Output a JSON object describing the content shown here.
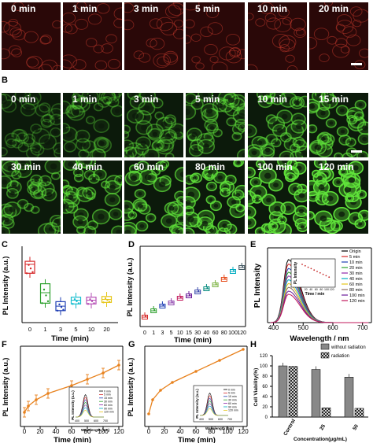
{
  "panels": {
    "A": "A",
    "B": "B",
    "C": "C",
    "D": "D",
    "E": "E",
    "F": "F",
    "G": "G",
    "H": "H"
  },
  "rowA": [
    "0 min",
    "1 min",
    "3 min",
    "5 min",
    "10 min",
    "20 min"
  ],
  "rowB1": [
    "0 min",
    "1 min",
    "3 min",
    "5 min",
    "10 min",
    "15 min"
  ],
  "rowB2": [
    "30 min",
    "40 min",
    "60 min",
    "80 min",
    "100 min",
    "120 min"
  ],
  "colors": {
    "red_cells": "#c0392b",
    "green_cells": "#5fe23a",
    "orange": "#e8821e"
  },
  "chart_data": [
    {
      "id": "C",
      "type": "box",
      "ylabel": "PL Intensity (a.u.)",
      "xlabel": "Time (min)",
      "categories": [
        "0",
        "1",
        "3",
        "5",
        "10",
        "20"
      ],
      "colors": [
        "#d62728",
        "#2ca02c",
        "#1f3fb4",
        "#17becf",
        "#b64fb6",
        "#e6c619"
      ],
      "medians": [
        0.78,
        0.4,
        0.22,
        0.3,
        0.3,
        0.31
      ],
      "q1": [
        0.66,
        0.26,
        0.16,
        0.25,
        0.25,
        0.27
      ],
      "q3": [
        0.82,
        0.52,
        0.28,
        0.34,
        0.34,
        0.35
      ]
    },
    {
      "id": "D",
      "type": "box",
      "ylabel": "PL Intensity (a.u.)",
      "xlabel": "Time (min)",
      "categories": [
        "0",
        "1",
        "3",
        "5",
        "10",
        "15",
        "30",
        "40",
        "60",
        "80",
        "100",
        "120"
      ],
      "medians": [
        0.12,
        0.2,
        0.26,
        0.3,
        0.36,
        0.39,
        0.44,
        0.48,
        0.53,
        0.6,
        0.7,
        0.75
      ]
    },
    {
      "id": "E",
      "type": "line",
      "ylabel": "PL Intensity",
      "xlabel": "Wavelength / nm",
      "x_ticks": [
        "400",
        "500",
        "600",
        "700"
      ],
      "legend": [
        "Origin",
        "5 min",
        "10 min",
        "20 min",
        "30 min",
        "40 min",
        "60 min",
        "80 min",
        "100 min",
        "120 min"
      ],
      "peak_heights": [
        1.0,
        0.93,
        0.86,
        0.8,
        0.74,
        0.68,
        0.62,
        0.56,
        0.5,
        0.45
      ],
      "inset": {
        "ylabel": "PL Intensity",
        "xlabel": "Time / min",
        "x_ticks": [
          "0",
          "20",
          "40",
          "60",
          "80",
          "100",
          "120"
        ]
      }
    },
    {
      "id": "F",
      "type": "line",
      "ylabel": "PL Intensity (a.u.)",
      "xlabel": "Time (min)",
      "x_ticks": [
        "0",
        "20",
        "40",
        "60",
        "80",
        "100",
        "120"
      ],
      "x": [
        0,
        5,
        15,
        30,
        60,
        80,
        100,
        120
      ],
      "y": [
        0.18,
        0.26,
        0.34,
        0.42,
        0.52,
        0.6,
        0.68,
        0.78
      ],
      "inset": {
        "ylabel": "PL Intensity (a.u.)",
        "xlabel": "Wavelength (nm)",
        "x_ticks": [
          "400",
          "500",
          "600",
          "700"
        ],
        "legend": [
          "0 min",
          "5 min",
          "15 min",
          "30 min",
          "60 min",
          "90 min",
          "120 min"
        ]
      }
    },
    {
      "id": "G",
      "type": "line",
      "ylabel": "PL Intensity (a.u.)",
      "xlabel": "Time (min)",
      "x_ticks": [
        "0",
        "20",
        "40",
        "60",
        "80",
        "100",
        "120"
      ],
      "x": [
        0,
        5,
        15,
        30,
        60,
        90,
        120
      ],
      "y": [
        0.16,
        0.34,
        0.46,
        0.56,
        0.7,
        0.84,
        0.98
      ],
      "inset": {
        "ylabel": "PL Intensity (a.u.)",
        "xlabel": "Wavelength (nm)",
        "x_ticks": [
          "400",
          "500",
          "600",
          "700"
        ],
        "legend": [
          "0 min",
          "5 min",
          "15 min",
          "30 min",
          "60 min",
          "90 min",
          "120 min"
        ]
      }
    },
    {
      "id": "H",
      "type": "bar",
      "ylabel": "Cell Viability(%)",
      "xlabel": "Concentration(μg/mL)",
      "categories": [
        "Control",
        "25",
        "50"
      ],
      "y_ticks": [
        "0",
        "20",
        "40",
        "60",
        "80",
        "100",
        "120"
      ],
      "ylim": [
        0,
        120
      ],
      "series": [
        {
          "name": "without radiation",
          "values": [
            100,
            93,
            78
          ]
        },
        {
          "name": "radiation",
          "values": [
            99,
            18,
            17
          ]
        }
      ]
    }
  ]
}
